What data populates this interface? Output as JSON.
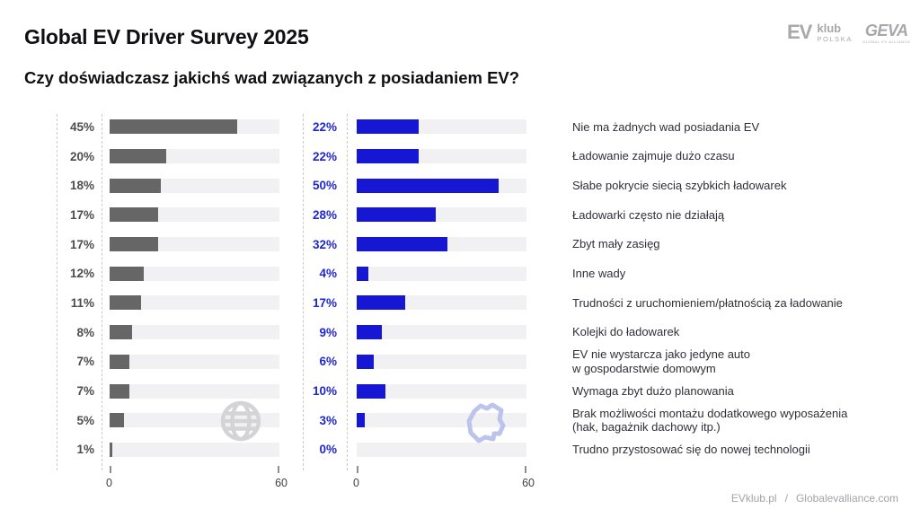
{
  "header": {
    "title": "Global EV Driver Survey 2025",
    "subtitle": "Czy doświadczasz jakichś wad związanych z posiadaniem EV?"
  },
  "logos": {
    "evklub": {
      "ev": "EV",
      "klub": "klub",
      "polska": "POLSKA"
    },
    "geva": {
      "name": "GEVA",
      "caption": "GLOBAL EV ALLIANCE"
    }
  },
  "footer": {
    "site_left": "EVklub.pl",
    "separator": "/",
    "site_right": "Globalevalliance.com"
  },
  "colors": {
    "global_bar": "#666666",
    "poland_bar": "#1617d3",
    "poland_percent_text": "#2028cd",
    "global_percent_text": "#4d4d4d",
    "track": "#f1f1f3",
    "globe_watermark": "#d4d4d6",
    "poland_watermark": "#bcc3ed"
  },
  "chart_data": {
    "type": "bar",
    "orientation": "horizontal",
    "title": "Czy doświadczasz jakichś wad związanych z posiadaniem EV?",
    "xlim": [
      0,
      60
    ],
    "ticks": [
      "0",
      "60"
    ],
    "grid": false,
    "legend": "none",
    "categories": [
      "Nie ma żadnych wad posiadania EV",
      "Ładowanie zajmuje dużo czasu",
      "Słabe pokrycie siecią szybkich ładowarek",
      "Ładowarki często nie działają",
      "Zbyt mały zasięg",
      "Inne wady",
      "Trudności z uruchomieniem/płatnością za ładowanie",
      "Kolejki do ładowarek",
      "EV nie wystarcza jako jedyne auto\nw gospodarstwie domowym",
      "Wymaga zbyt dużo planowania",
      "Brak możliwości montażu dodatkowego wyposażenia\n(hak, bagażnik dachowy itp.)",
      "Trudno przystosować się do nowej technologii"
    ],
    "series": [
      {
        "name": "Global (globe watermark)",
        "unit": "%",
        "color": "#666666",
        "values": [
          45,
          20,
          18,
          17,
          17,
          12,
          11,
          8,
          7,
          7,
          5,
          1
        ]
      },
      {
        "name": "Polska (Poland watermark)",
        "unit": "%",
        "color": "#1617d3",
        "values": [
          22,
          22,
          50,
          28,
          32,
          4,
          17,
          9,
          6,
          10,
          3,
          0
        ]
      }
    ]
  }
}
